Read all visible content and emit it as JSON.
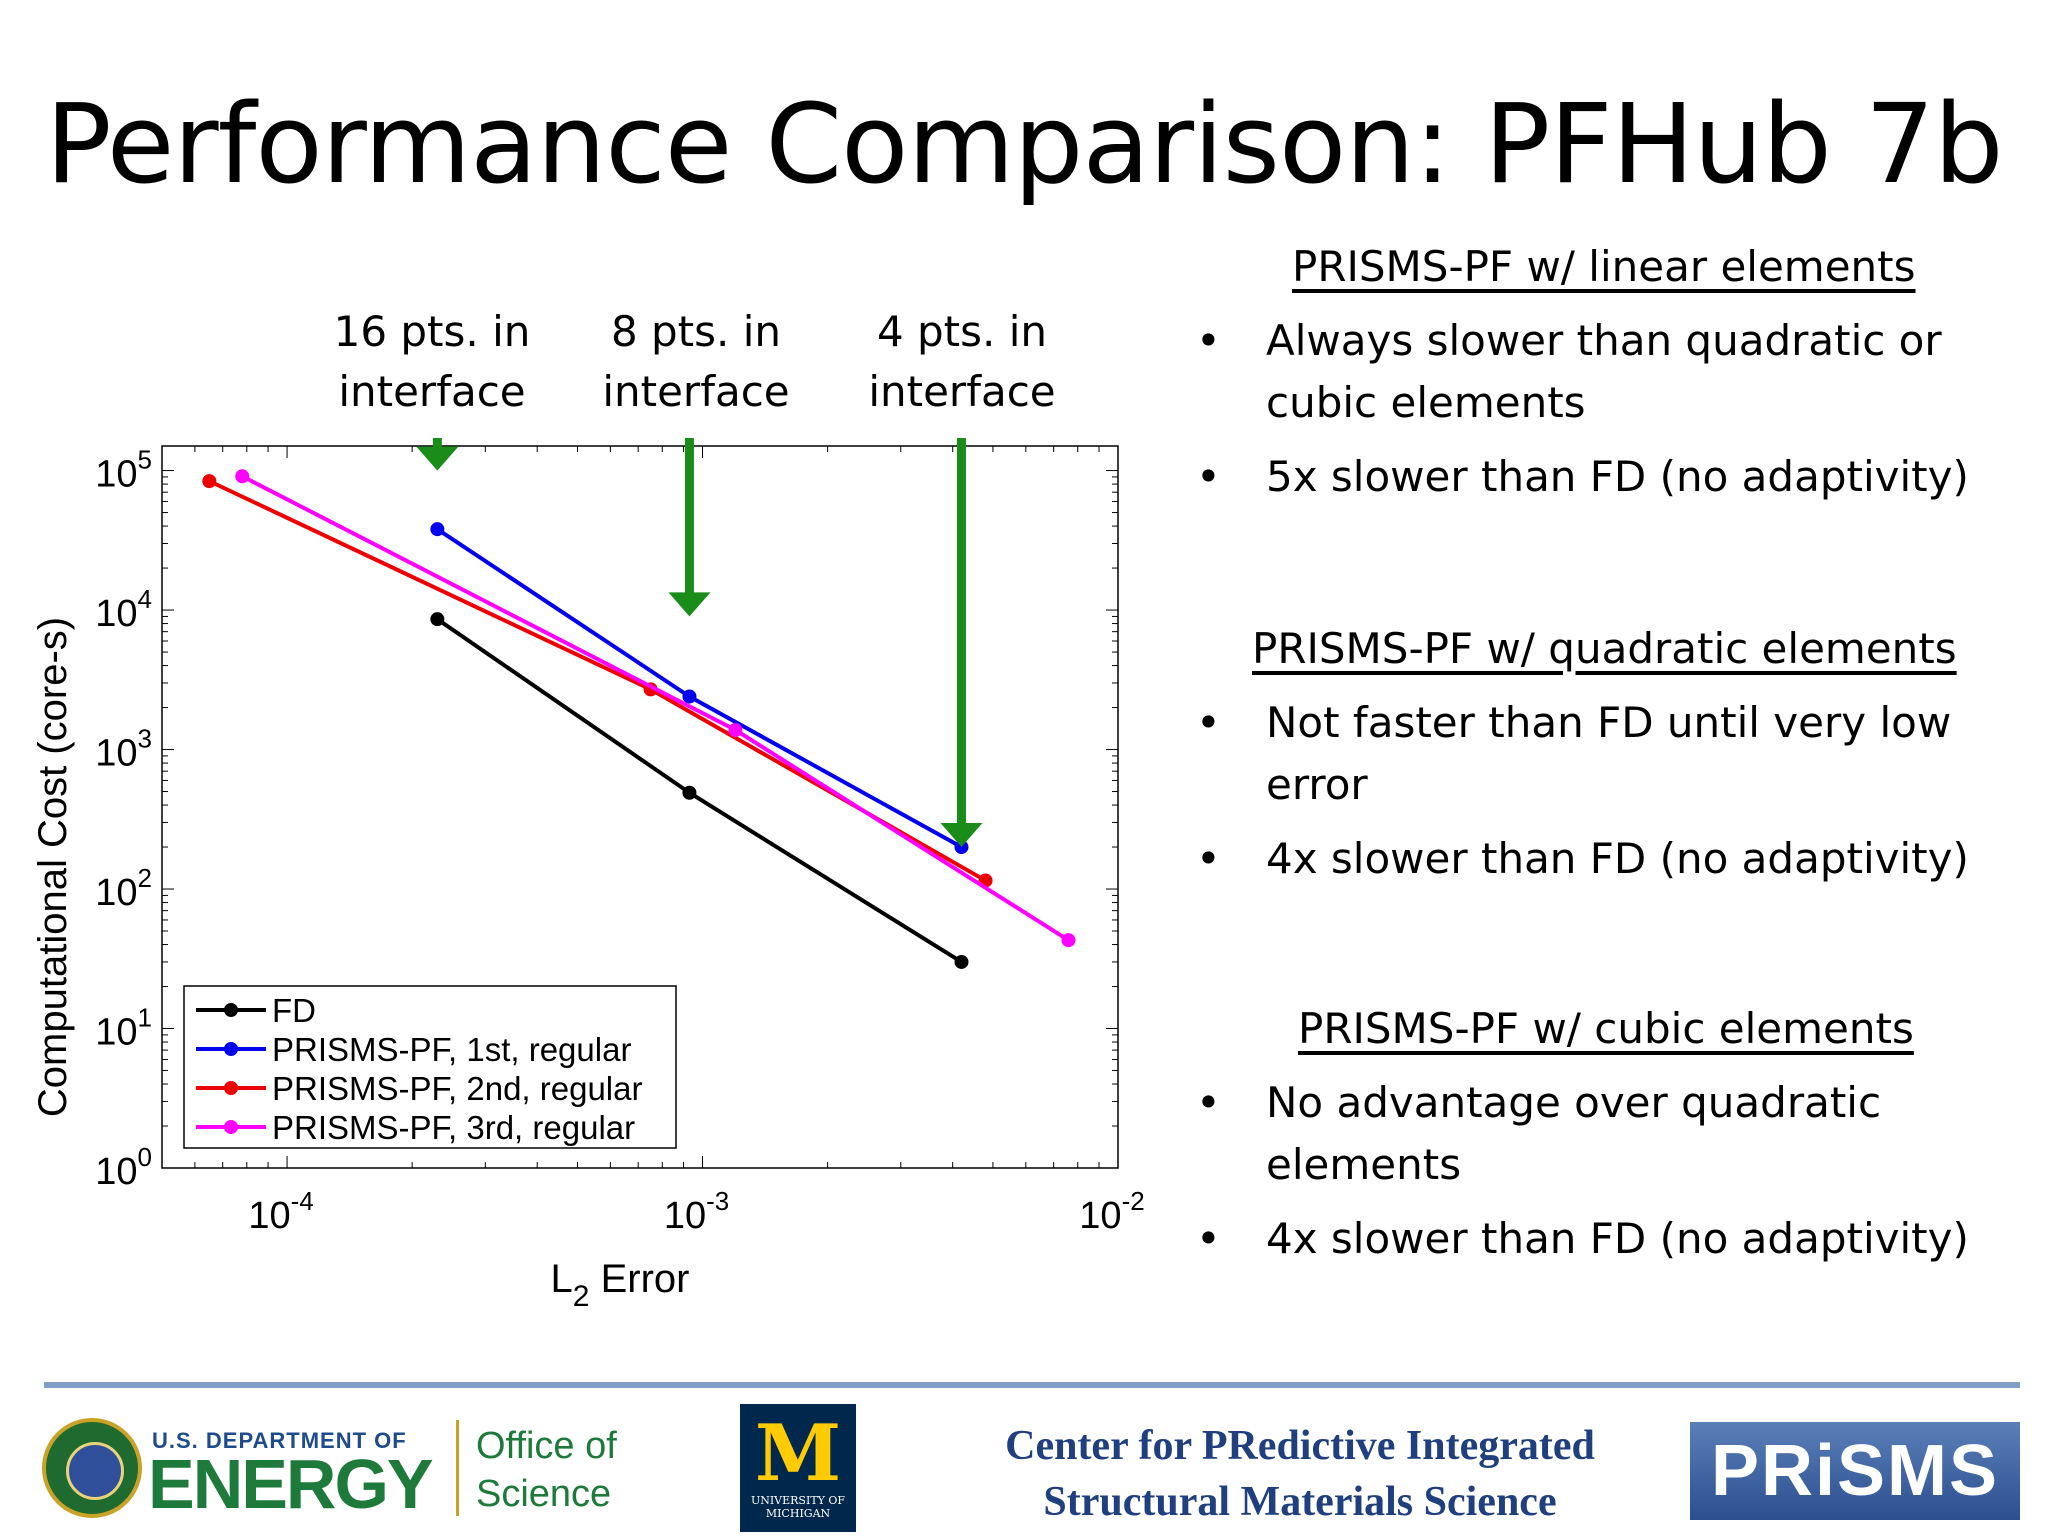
{
  "title": "Performance Comparison: PFHub 7b",
  "arrow_labels": [
    {
      "line1": "16 pts. in",
      "line2": "interface"
    },
    {
      "line1": "8 pts. in",
      "line2": "interface"
    },
    {
      "line1": "4 pts. in",
      "line2": "interface"
    }
  ],
  "chart_data": {
    "type": "line",
    "x_scale": "log",
    "y_scale": "log",
    "xlabel_main": "L",
    "xlabel_sub": "2",
    "xlabel_rest": " Error",
    "ylabel": "Computational Cost (core-s)",
    "xlim": [
      5e-05,
      0.01
    ],
    "ylim": [
      1,
      150000
    ],
    "x_ticks": [
      {
        "value": 0.0001,
        "base": "10",
        "exp": "-4"
      },
      {
        "value": 0.001,
        "base": "10",
        "exp": "-3"
      },
      {
        "value": 0.01,
        "base": "10",
        "exp": "-2"
      }
    ],
    "y_ticks": [
      {
        "value": 1,
        "base": "10",
        "exp": "0"
      },
      {
        "value": 10,
        "base": "10",
        "exp": "1"
      },
      {
        "value": 100,
        "base": "10",
        "exp": "2"
      },
      {
        "value": 1000,
        "base": "10",
        "exp": "3"
      },
      {
        "value": 10000,
        "base": "10",
        "exp": "4"
      },
      {
        "value": 100000,
        "base": "10",
        "exp": "5"
      }
    ],
    "arrow_x": [
      0.00023,
      0.00093,
      0.0042
    ],
    "arrow_tip_y": [
      100000,
      9000,
      200
    ],
    "series": [
      {
        "name": "FD",
        "color": "#000000",
        "x": [
          0.00023,
          0.00093,
          0.0042
        ],
        "y": [
          8600,
          490,
          30
        ]
      },
      {
        "name": "PRISMS-PF, 1st, regular",
        "color": "#0000ee",
        "x": [
          0.00023,
          0.00093,
          0.0042
        ],
        "y": [
          38000,
          2400,
          200
        ]
      },
      {
        "name": "PRISMS-PF, 2nd, regular",
        "color": "#ee0000",
        "x": [
          6.5e-05,
          0.00075,
          0.0048
        ],
        "y": [
          84000,
          2700,
          115
        ]
      },
      {
        "name": "PRISMS-PF, 3rd, regular",
        "color": "#ff00ff",
        "x": [
          7.8e-05,
          0.0012,
          0.0076
        ],
        "y": [
          91000,
          1380,
          43
        ]
      }
    ]
  },
  "sections": [
    {
      "heading": "PRISMS-PF w/ linear elements",
      "bullets": [
        {
          "line1": "Always slower than quadratic or",
          "line2": "cubic elements"
        },
        {
          "line1": "5x slower than FD (no adaptivity)",
          "line2": ""
        }
      ]
    },
    {
      "heading": "PRISMS-PF w/ quadratic elements",
      "bullets": [
        {
          "line1": "Not faster than FD until very low",
          "line2": "error"
        },
        {
          "line1": "4x slower than FD (no adaptivity)",
          "line2": ""
        }
      ]
    },
    {
      "heading": "PRISMS-PF w/ cubic elements",
      "bullets": [
        {
          "line1": "No advantage over quadratic",
          "line2": "elements"
        },
        {
          "line1": "4x slower than FD (no adaptivity)",
          "line2": ""
        }
      ]
    }
  ],
  "bullet_symbol": "•",
  "footer": {
    "doe_small": "U.S. DEPARTMENT OF",
    "doe_big": "ENERGY",
    "office_line1": "Office of",
    "office_line2": "Science",
    "umich_m": "M",
    "umich_line1": "UNIVERSITY OF",
    "umich_line2": "MICHIGAN",
    "center_line1": "Center for  PRedictive Integrated",
    "center_line2": "Structural Materials Science",
    "prisms": "PRiSMS"
  }
}
